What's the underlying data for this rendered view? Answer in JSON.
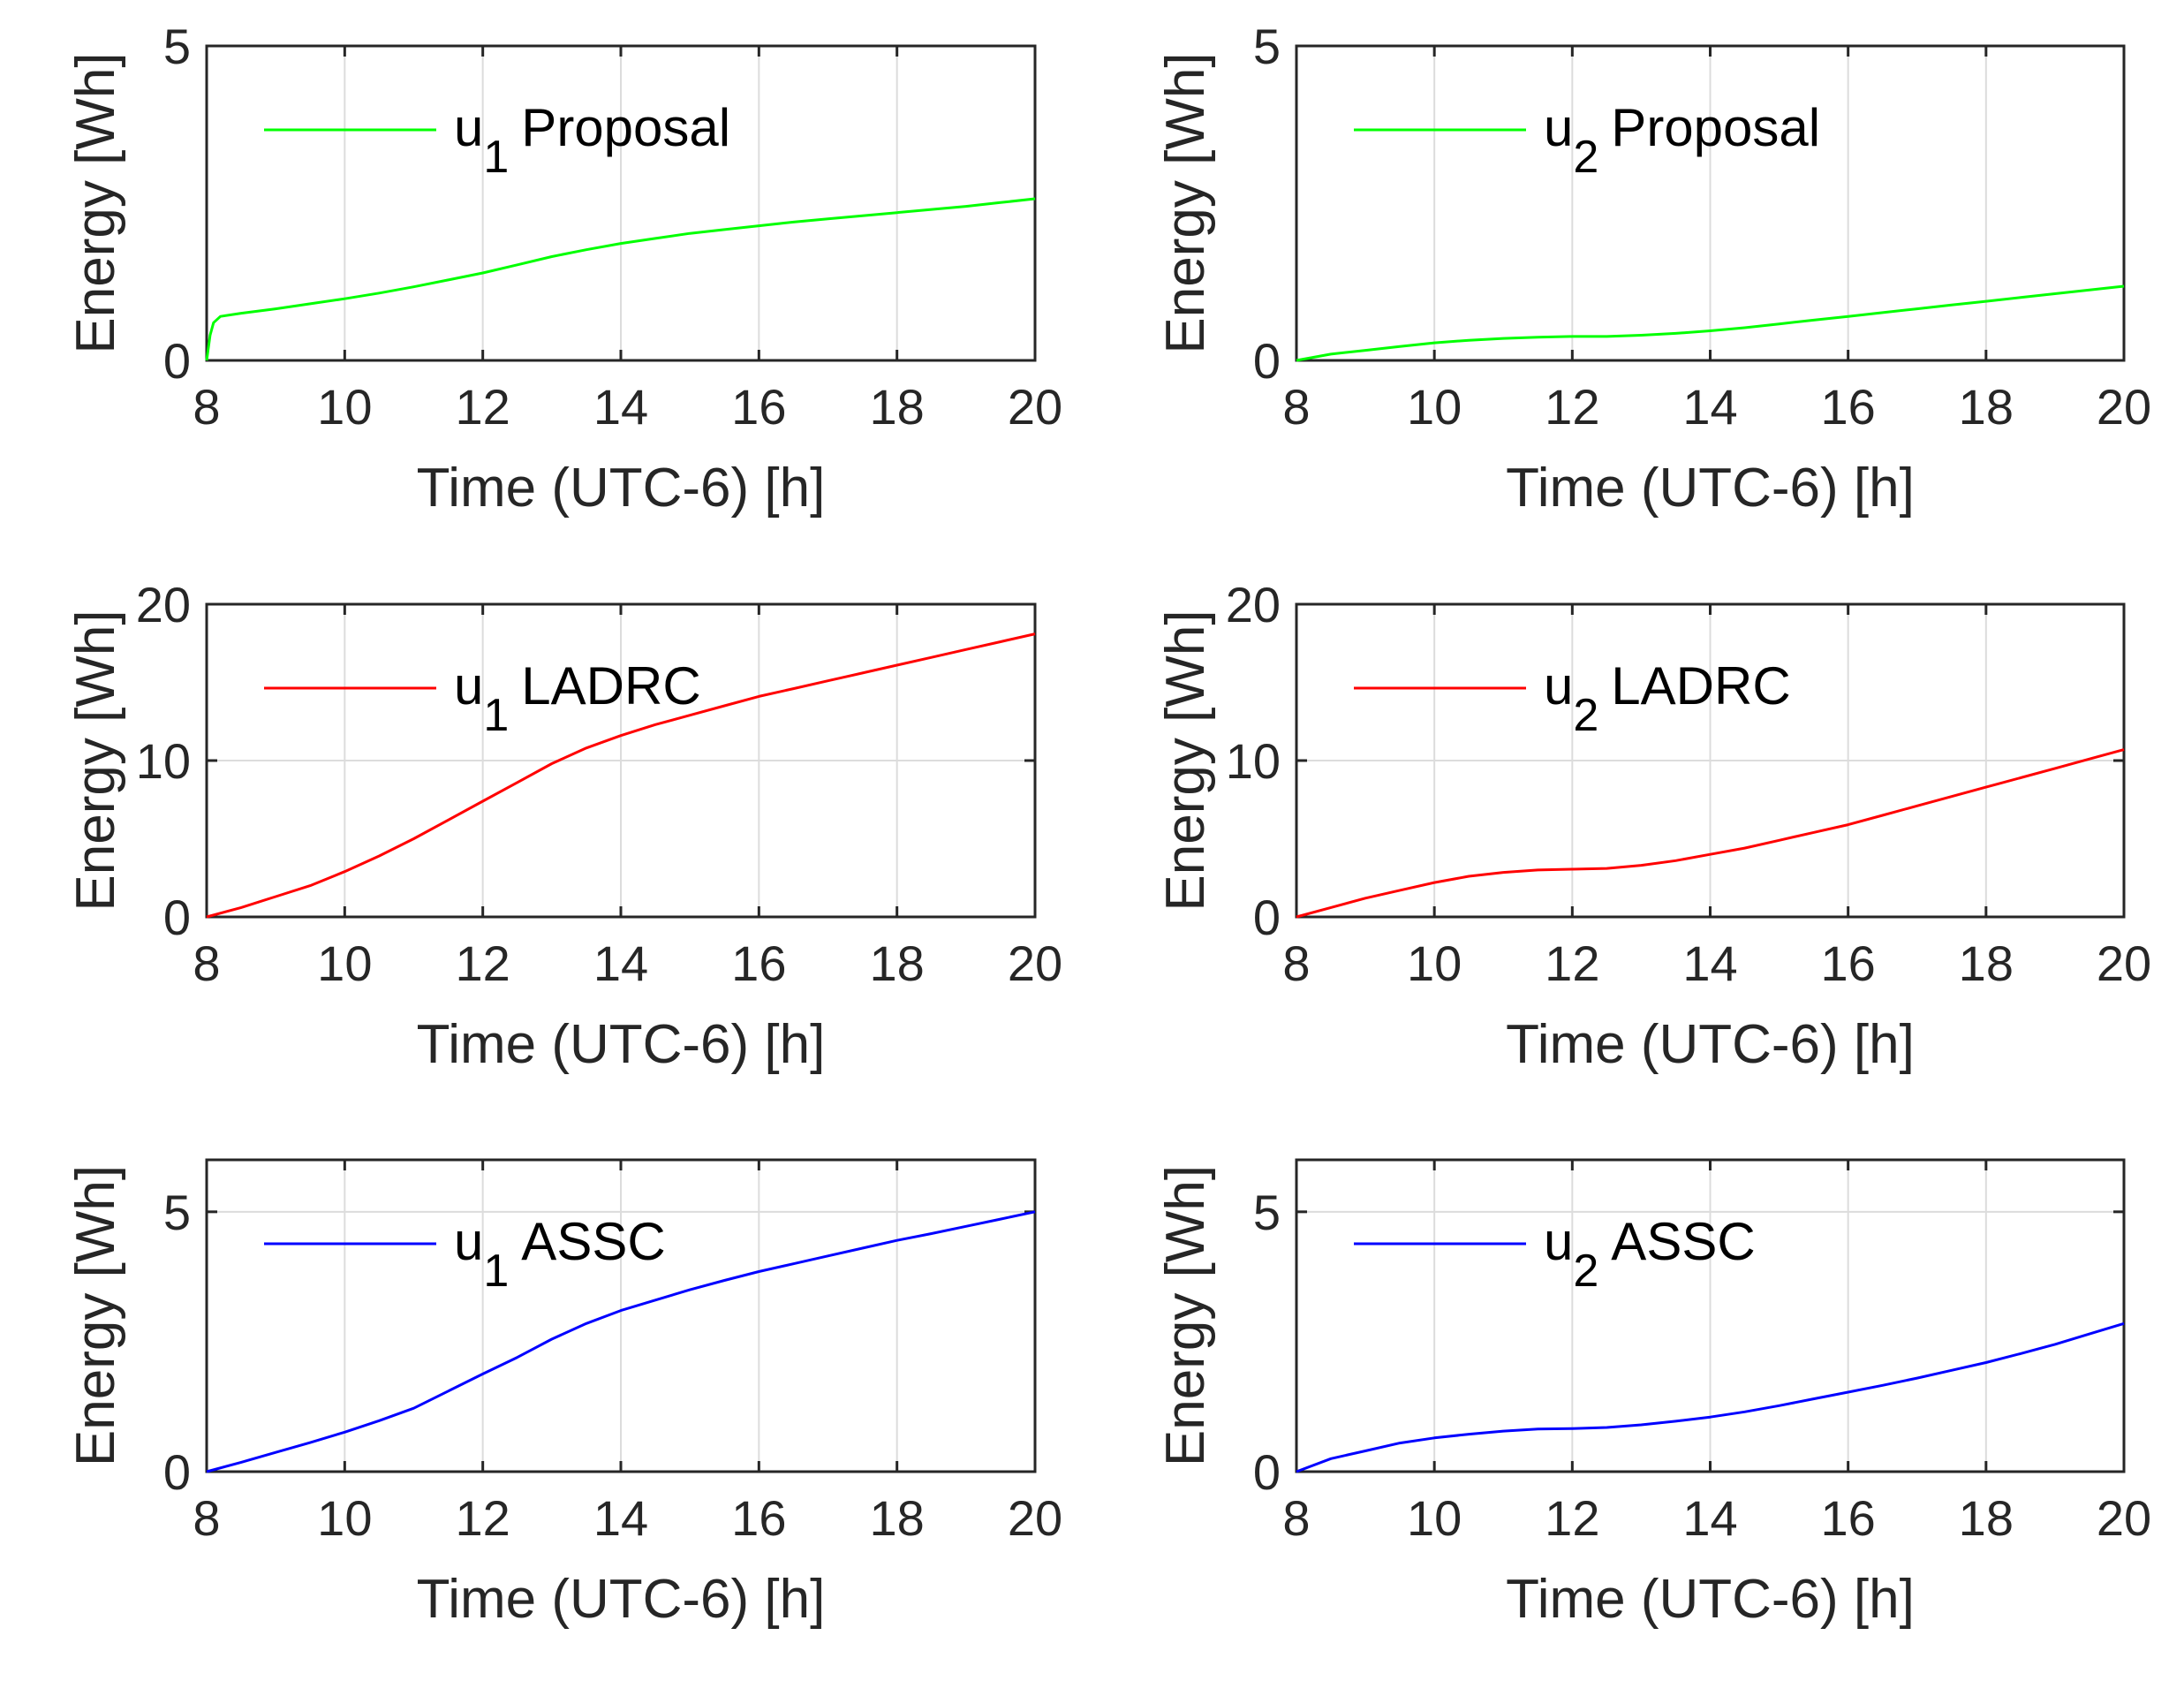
{
  "chart_data": [
    {
      "type": "line",
      "xlabel": "Time (UTC-6) [h]",
      "ylabel": "Energy [Wh]",
      "xlim": [
        8,
        20
      ],
      "ylim": [
        0,
        5
      ],
      "xticks": [
        8,
        10,
        12,
        14,
        16,
        18,
        20
      ],
      "yticks": [
        0,
        5
      ],
      "grid": true,
      "legend_location": "top-left",
      "series": [
        {
          "name": "u_1 Proposal",
          "subscript": "1",
          "method": "Proposal",
          "color": "#00ff00",
          "x": [
            8,
            8.05,
            8.1,
            8.2,
            8.5,
            9,
            9.5,
            10,
            10.5,
            11,
            11.5,
            12,
            12.5,
            13,
            13.5,
            14,
            14.5,
            15,
            15.5,
            16,
            16.5,
            17,
            17.5,
            18,
            18.5,
            19,
            19.5,
            20
          ],
          "y": [
            0,
            0.4,
            0.6,
            0.7,
            0.75,
            0.82,
            0.9,
            0.98,
            1.07,
            1.17,
            1.28,
            1.39,
            1.52,
            1.65,
            1.76,
            1.86,
            1.94,
            2.02,
            2.08,
            2.14,
            2.2,
            2.25,
            2.3,
            2.35,
            2.4,
            2.45,
            2.51,
            2.57
          ]
        }
      ]
    },
    {
      "type": "line",
      "xlabel": "Time (UTC-6) [h]",
      "ylabel": "Energy [Wh]",
      "xlim": [
        8,
        20
      ],
      "ylim": [
        0,
        5
      ],
      "xticks": [
        8,
        10,
        12,
        14,
        16,
        18,
        20
      ],
      "yticks": [
        0,
        5
      ],
      "grid": true,
      "legend_location": "top-left",
      "series": [
        {
          "name": "u_2 Proposal",
          "subscript": "2",
          "method": "Proposal",
          "color": "#00ff00",
          "x": [
            8,
            8.5,
            9,
            9.5,
            10,
            10.5,
            11,
            11.5,
            12,
            12.5,
            13,
            13.5,
            14,
            14.5,
            15,
            15.5,
            16,
            16.5,
            17,
            17.5,
            18,
            18.5,
            19,
            19.5,
            20
          ],
          "y": [
            0,
            0.1,
            0.16,
            0.22,
            0.28,
            0.32,
            0.35,
            0.37,
            0.38,
            0.38,
            0.4,
            0.43,
            0.47,
            0.52,
            0.58,
            0.64,
            0.7,
            0.76,
            0.82,
            0.88,
            0.94,
            1.0,
            1.06,
            1.12,
            1.18
          ]
        }
      ]
    },
    {
      "type": "line",
      "xlabel": "Time (UTC-6) [h]",
      "ylabel": "Energy [Wh]",
      "xlim": [
        8,
        20
      ],
      "ylim": [
        0,
        20
      ],
      "xticks": [
        8,
        10,
        12,
        14,
        16,
        18,
        20
      ],
      "yticks": [
        0,
        10,
        20
      ],
      "grid": true,
      "legend_location": "top-left",
      "series": [
        {
          "name": "u_1 LADRC",
          "subscript": "1",
          "method": "LADRC",
          "color": "#ff0000",
          "x": [
            8,
            8.5,
            9,
            9.5,
            10,
            10.5,
            11,
            11.5,
            12,
            12.5,
            13,
            13.5,
            14,
            14.5,
            15,
            15.5,
            16,
            16.5,
            17,
            17.5,
            18,
            18.5,
            19,
            19.5,
            20
          ],
          "y": [
            0,
            0.6,
            1.3,
            2.0,
            2.9,
            3.9,
            5.0,
            6.2,
            7.4,
            8.6,
            9.8,
            10.8,
            11.6,
            12.3,
            12.9,
            13.5,
            14.1,
            14.6,
            15.1,
            15.6,
            16.1,
            16.6,
            17.1,
            17.6,
            18.1
          ]
        }
      ]
    },
    {
      "type": "line",
      "xlabel": "Time (UTC-6) [h]",
      "ylabel": "Energy [Wh]",
      "xlim": [
        8,
        20
      ],
      "ylim": [
        0,
        20
      ],
      "xticks": [
        8,
        10,
        12,
        14,
        16,
        18,
        20
      ],
      "yticks": [
        0,
        10,
        20
      ],
      "grid": true,
      "legend_location": "top-left",
      "series": [
        {
          "name": "u_2 LADRC",
          "subscript": "2",
          "method": "LADRC",
          "color": "#ff0000",
          "x": [
            8,
            8.5,
            9,
            9.5,
            10,
            10.5,
            11,
            11.5,
            12,
            12.5,
            13,
            13.5,
            14,
            14.5,
            15,
            15.5,
            16,
            16.5,
            17,
            17.5,
            18,
            18.5,
            19,
            19.5,
            20
          ],
          "y": [
            0,
            0.6,
            1.2,
            1.7,
            2.2,
            2.6,
            2.85,
            3.0,
            3.05,
            3.1,
            3.3,
            3.6,
            4.0,
            4.4,
            4.9,
            5.4,
            5.9,
            6.5,
            7.1,
            7.7,
            8.3,
            8.9,
            9.5,
            10.1,
            10.7
          ]
        }
      ]
    },
    {
      "type": "line",
      "xlabel": "Time (UTC-6) [h]",
      "ylabel": "Energy [Wh]",
      "xlim": [
        8,
        20
      ],
      "ylim": [
        0,
        6
      ],
      "xticks": [
        8,
        10,
        12,
        14,
        16,
        18,
        20
      ],
      "yticks": [
        0,
        5
      ],
      "grid": true,
      "legend_location": "top-left",
      "series": [
        {
          "name": "u_1 ASSC",
          "subscript": "1",
          "method": "ASSC",
          "color": "#0000ff",
          "x": [
            8,
            8.5,
            9,
            9.5,
            10,
            10.5,
            11,
            11.5,
            12,
            12.5,
            13,
            13.5,
            14,
            14.5,
            15,
            15.5,
            16,
            16.5,
            17,
            17.5,
            18,
            18.5,
            19,
            19.5,
            20
          ],
          "y": [
            0,
            0.18,
            0.37,
            0.56,
            0.76,
            0.98,
            1.22,
            1.55,
            1.88,
            2.2,
            2.55,
            2.85,
            3.1,
            3.3,
            3.5,
            3.68,
            3.85,
            4.0,
            4.15,
            4.3,
            4.45,
            4.58,
            4.72,
            4.86,
            5.0
          ]
        }
      ]
    },
    {
      "type": "line",
      "xlabel": "Time (UTC-6) [h]",
      "ylabel": "Energy [Wh]",
      "xlim": [
        8,
        20
      ],
      "ylim": [
        0,
        6
      ],
      "xticks": [
        8,
        10,
        12,
        14,
        16,
        18,
        20
      ],
      "yticks": [
        0,
        5
      ],
      "grid": true,
      "legend_location": "top-left",
      "series": [
        {
          "name": "u_2 ASSC",
          "subscript": "2",
          "method": "ASSC",
          "color": "#0000ff",
          "x": [
            8,
            8.5,
            9,
            9.5,
            10,
            10.5,
            11,
            11.5,
            12,
            12.5,
            13,
            13.5,
            14,
            14.5,
            15,
            15.5,
            16,
            16.5,
            17,
            17.5,
            18,
            18.5,
            19,
            19.5,
            20
          ],
          "y": [
            0,
            0.25,
            0.4,
            0.55,
            0.65,
            0.72,
            0.78,
            0.82,
            0.83,
            0.85,
            0.9,
            0.97,
            1.05,
            1.15,
            1.27,
            1.4,
            1.53,
            1.66,
            1.8,
            1.95,
            2.1,
            2.27,
            2.45,
            2.65,
            2.85
          ]
        }
      ]
    }
  ]
}
